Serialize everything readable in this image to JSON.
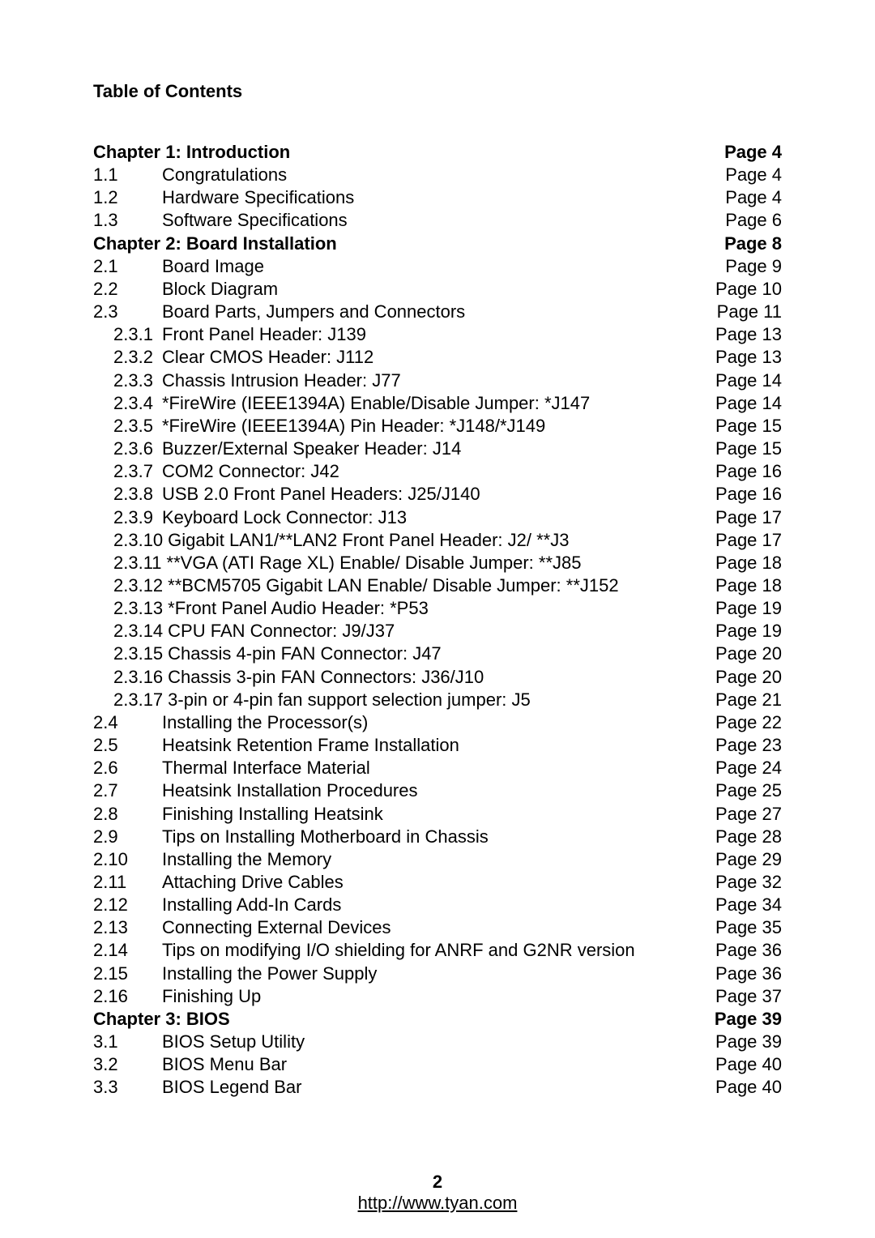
{
  "title": "Table of Contents",
  "footer": {
    "pageNumber": "2",
    "url": "http://www.tyan.com"
  },
  "entries": [
    {
      "num": "",
      "text": "Chapter 1: Introduction",
      "page": "Page 4",
      "bold": true,
      "level": 0
    },
    {
      "num": "1.1",
      "text": "Congratulations",
      "page": "Page 4",
      "bold": false,
      "level": 1
    },
    {
      "num": "1.2",
      "text": " Hardware Specifications",
      "page": "Page 4",
      "bold": false,
      "level": 1
    },
    {
      "num": "1.3",
      "text": " Software Specifications",
      "page": "Page 6",
      "bold": false,
      "level": 1
    },
    {
      "num": "",
      "text": "Chapter 2: Board Installation",
      "page": "Page 8",
      "bold": true,
      "level": 0
    },
    {
      "num": "2.1",
      "text": "Board Image",
      "page": "Page 9",
      "bold": false,
      "level": 1
    },
    {
      "num": "2.2",
      "text": "Block Diagram",
      "page": "Page 10",
      "bold": false,
      "level": 1
    },
    {
      "num": "2.3",
      "text": "Board Parts, Jumpers and Connectors",
      "page": "Page 11",
      "bold": false,
      "level": 1
    },
    {
      "num": "2.3.1",
      "text": "Front Panel Header: J139",
      "page": "Page 13",
      "bold": false,
      "level": 2
    },
    {
      "num": "2.3.2",
      "text": "Clear CMOS Header: J112",
      "page": "Page 13",
      "bold": false,
      "level": 2
    },
    {
      "num": "2.3.3",
      "text": "Chassis Intrusion Header: J77",
      "page": "Page 14",
      "bold": false,
      "level": 2
    },
    {
      "num": "2.3.4",
      "text": "*FireWire (IEEE1394A) Enable/Disable Jumper: *J147",
      "page": "Page 14",
      "bold": false,
      "level": 2
    },
    {
      "num": "2.3.5",
      "text": "*FireWire (IEEE1394A) Pin Header: *J148/*J149",
      "page": "Page 15",
      "bold": false,
      "level": 2
    },
    {
      "num": "2.3.6",
      "text": "Buzzer/External Speaker Header: J14",
      "page": "Page 15",
      "bold": false,
      "level": 2
    },
    {
      "num": "2.3.7",
      "text": "COM2 Connector: J42",
      "page": "Page 16",
      "bold": false,
      "level": 2
    },
    {
      "num": "2.3.8",
      "text": "USB 2.0 Front Panel Headers: J25/J140",
      "page": "Page 16",
      "bold": false,
      "level": 2
    },
    {
      "num": "2.3.9",
      "text": "Keyboard Lock Connector: J13",
      "page": "Page 17",
      "bold": false,
      "level": 2
    },
    {
      "num": "2.3.10",
      "text": "Gigabit LAN1/**LAN2 Front Panel Header: J2/ **J3",
      "page": "Page 17",
      "bold": false,
      "level": 2,
      "linebreak": true
    },
    {
      "num": "2.3.11",
      "text": "**VGA (ATI Rage XL) Enable/ Disable Jumper: **J85",
      "page": "Page 18",
      "bold": false,
      "level": 2,
      "linebreak": true
    },
    {
      "num": "2.3.12",
      "text": "**BCM5705 Gigabit LAN Enable/ Disable Jumper: **J152",
      "page": "Page 18",
      "bold": false,
      "level": 2,
      "linebreak": true
    },
    {
      "num": "2.3.13",
      "text": "*Front Panel Audio Header: *P53",
      "page": "Page 19",
      "bold": false,
      "level": 2,
      "linebreak": true
    },
    {
      "num": "2.3.14",
      "text": "CPU FAN Connector: J9/J37",
      "page": "Page 19",
      "bold": false,
      "level": 2,
      "linebreak": true
    },
    {
      "num": "2.3.15",
      "text": "Chassis 4-pin FAN Connector: J47",
      "page": "Page 20",
      "bold": false,
      "level": 2,
      "linebreak": true
    },
    {
      "num": "2.3.16",
      "text": "Chassis 3-pin FAN Connectors: J36/J10",
      "page": "Page 20",
      "bold": false,
      "level": 2,
      "linebreak": true
    },
    {
      "num": "2.3.17",
      "text": "3-pin or 4-pin fan support selection jumper: J5",
      "page": "Page 21",
      "bold": false,
      "level": 2,
      "linebreak": true
    },
    {
      "num": "2.4",
      "text": "Installing the Processor(s)",
      "page": "Page 22",
      "bold": false,
      "level": 1
    },
    {
      "num": "2.5",
      "text": "Heatsink Retention Frame Installation",
      "page": "Page 23",
      "bold": false,
      "level": 1
    },
    {
      "num": "2.6",
      "text": "Thermal Interface Material",
      "page": "Page 24",
      "bold": false,
      "level": 1
    },
    {
      "num": "2.7",
      "text": "Heatsink Installation Procedures",
      "page": "Page 25",
      "bold": false,
      "level": 1
    },
    {
      "num": "2.8",
      "text": "Finishing Installing Heatsink",
      "page": "Page 27",
      "bold": false,
      "level": 1
    },
    {
      "num": "2.9",
      "text": "Tips on Installing Motherboard in Chassis",
      "page": "Page 28",
      "bold": false,
      "level": 1
    },
    {
      "num": "2.10",
      "text": "Installing the Memory",
      "page": "Page 29",
      "bold": false,
      "level": 1
    },
    {
      "num": "2.11",
      "text": "Attaching Drive Cables",
      "page": "Page 32",
      "bold": false,
      "level": 1
    },
    {
      "num": "2.12",
      "text": "Installing Add-In Cards",
      "page": "Page 34",
      "bold": false,
      "level": 1
    },
    {
      "num": "2.13",
      "text": "Connecting External Devices",
      "page": "Page 35",
      "bold": false,
      "level": 1
    },
    {
      "num": "2.14",
      "text": "Tips on modifying I/O shielding for ANRF and G2NR version",
      "page": "Page 36",
      "bold": false,
      "level": 1
    },
    {
      "num": "2.15",
      "text": "Installing the Power Supply",
      "page": "Page 36",
      "bold": false,
      "level": 1
    },
    {
      "num": "2.16",
      "text": "Finishing Up",
      "page": "Page 37",
      "bold": false,
      "level": 1
    },
    {
      "num": "",
      "text": "Chapter 3: BIOS",
      "page": "Page 39",
      "bold": true,
      "level": 0
    },
    {
      "num": "3.1",
      "text": "BIOS Setup Utility",
      "page": "Page 39",
      "bold": false,
      "level": 1
    },
    {
      "num": "3.2",
      "text": "BIOS Menu Bar",
      "page": "Page 40",
      "bold": false,
      "level": 1
    },
    {
      "num": "3.3",
      "text": "BIOS Legend Bar",
      "page": "Page 40",
      "bold": false,
      "level": 1
    }
  ]
}
